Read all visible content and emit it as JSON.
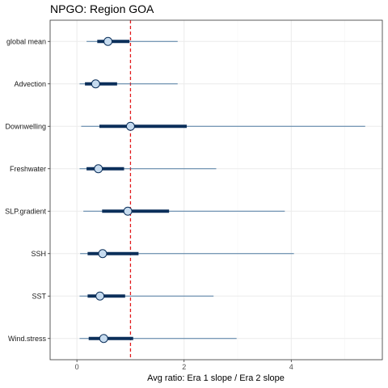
{
  "chart_data": {
    "type": "interval",
    "title": "NPGO: Region GOA",
    "xlabel": "Avg ratio: Era 1 slope / Era 2 slope",
    "ylabel": "",
    "xlim": [
      -0.5,
      5.7
    ],
    "xticks": [
      0,
      2,
      4
    ],
    "reference_line": {
      "x": 1,
      "color": "#e31a1c",
      "style": "dashed"
    },
    "categories": [
      "global mean",
      "Advection",
      "Downwelling",
      "Freshwater",
      "SLP.gradient",
      "SSH",
      "SST",
      "Wind.stress"
    ],
    "median": [
      0.58,
      0.35,
      1.0,
      0.4,
      0.95,
      0.48,
      0.43,
      0.5
    ],
    "inner_low": [
      0.38,
      0.15,
      0.42,
      0.18,
      0.47,
      0.2,
      0.2,
      0.22
    ],
    "inner_high": [
      0.98,
      0.75,
      2.05,
      0.88,
      1.72,
      1.15,
      0.9,
      1.05
    ],
    "outer_low": [
      0.18,
      0.05,
      0.08,
      0.05,
      0.12,
      0.06,
      0.05,
      0.05
    ],
    "outer_high": [
      1.88,
      1.88,
      5.38,
      2.6,
      3.88,
      4.05,
      2.55,
      2.98
    ],
    "grid": true,
    "legend": "none"
  },
  "colors": {
    "outer_interval": "#4e7ba1",
    "inner_interval": "#0b2f5a",
    "point_fill": "#c6dbef",
    "point_stroke": "#0b2f5a",
    "grid_major": "#ebebeb",
    "grid_minor": "#f4f4f4",
    "panel_border": "#333333"
  }
}
